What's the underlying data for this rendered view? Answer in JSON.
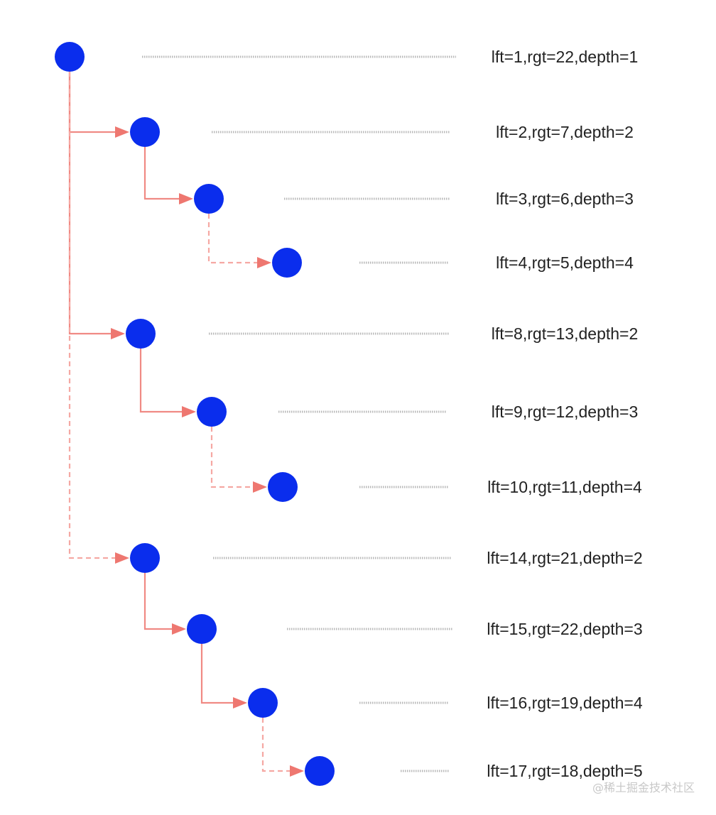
{
  "diagram": {
    "nodes": [
      {
        "id": "n1",
        "label": "lft=1,rgt=22,depth=1",
        "lft": 1,
        "rgt": 22,
        "depth": 1
      },
      {
        "id": "n2",
        "label": "lft=2,rgt=7,depth=2",
        "lft": 2,
        "rgt": 7,
        "depth": 2
      },
      {
        "id": "n3",
        "label": "lft=3,rgt=6,depth=3",
        "lft": 3,
        "rgt": 6,
        "depth": 3
      },
      {
        "id": "n4",
        "label": "lft=4,rgt=5,depth=4",
        "lft": 4,
        "rgt": 5,
        "depth": 4
      },
      {
        "id": "n5",
        "label": "lft=8,rgt=13,depth=2",
        "lft": 8,
        "rgt": 13,
        "depth": 2
      },
      {
        "id": "n6",
        "label": "lft=9,rgt=12,depth=3",
        "lft": 9,
        "rgt": 12,
        "depth": 3
      },
      {
        "id": "n7",
        "label": "lft=10,rgt=11,depth=4",
        "lft": 10,
        "rgt": 11,
        "depth": 4
      },
      {
        "id": "n8",
        "label": "lft=14,rgt=21,depth=2",
        "lft": 14,
        "rgt": 21,
        "depth": 2
      },
      {
        "id": "n9",
        "label": "lft=15,rgt=22,depth=3",
        "lft": 15,
        "rgt": 22,
        "depth": 3
      },
      {
        "id": "n10",
        "label": "lft=16,rgt=19,depth=4",
        "lft": 16,
        "rgt": 19,
        "depth": 4
      },
      {
        "id": "n11",
        "label": "lft=17,rgt=18,depth=5",
        "lft": 17,
        "rgt": 18,
        "depth": 5
      }
    ],
    "edges": [
      {
        "from": "n1",
        "to": "n2",
        "style": "solid"
      },
      {
        "from": "n2",
        "to": "n3",
        "style": "solid"
      },
      {
        "from": "n3",
        "to": "n4",
        "style": "dashed"
      },
      {
        "from": "n1",
        "to": "n5",
        "style": "solid"
      },
      {
        "from": "n5",
        "to": "n6",
        "style": "solid"
      },
      {
        "from": "n6",
        "to": "n7",
        "style": "dashed"
      },
      {
        "from": "n1",
        "to": "n8",
        "style": "dashed"
      },
      {
        "from": "n8",
        "to": "n9",
        "style": "solid"
      },
      {
        "from": "n9",
        "to": "n10",
        "style": "solid"
      },
      {
        "from": "n10",
        "to": "n11",
        "style": "dashed"
      }
    ],
    "colors": {
      "node": "#0a2ded",
      "edge": "#f08a84",
      "edge_dashed": "#f5a8a3",
      "arrowhead": "#ee7770",
      "leader": "#b9b9b9",
      "label": "#222222",
      "watermark": "#c8c8c8"
    }
  },
  "watermark": {
    "text": "@稀土掘金技术社区"
  }
}
